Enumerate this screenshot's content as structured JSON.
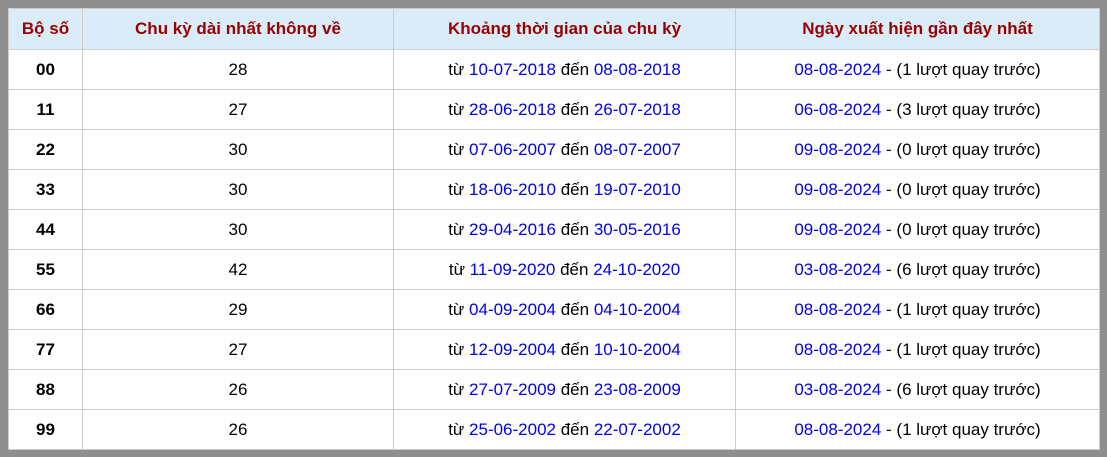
{
  "colors": {
    "frame_gray": "#8e8e8e",
    "cell_border": "#cccccc",
    "header_background": "#d9ecf7",
    "header_text": "#990000",
    "date_link_blue": "#0000ee",
    "body_text": "#000000"
  },
  "table": {
    "headers": [
      "Bộ số",
      "Chu kỳ dài nhất không về",
      "Khoảng thời gian của chu kỳ",
      "Ngày xuất hiện gần đây nhất"
    ],
    "period_labels": {
      "from": "từ ",
      "to": " đến "
    },
    "rows": [
      {
        "pair": "00",
        "cycle": "28",
        "from_date": "10-07-2018",
        "to_date": "08-08-2018",
        "recent_date": "08-08-2024",
        "recent_note": " - (1 lượt quay trước)"
      },
      {
        "pair": "11",
        "cycle": "27",
        "from_date": "28-06-2018",
        "to_date": "26-07-2018",
        "recent_date": "06-08-2024",
        "recent_note": " - (3 lượt quay trước)"
      },
      {
        "pair": "22",
        "cycle": "30",
        "from_date": "07-06-2007",
        "to_date": "08-07-2007",
        "recent_date": "09-08-2024",
        "recent_note": " - (0 lượt quay trước)"
      },
      {
        "pair": "33",
        "cycle": "30",
        "from_date": "18-06-2010",
        "to_date": "19-07-2010",
        "recent_date": "09-08-2024",
        "recent_note": " - (0 lượt quay trước)"
      },
      {
        "pair": "44",
        "cycle": "30",
        "from_date": "29-04-2016",
        "to_date": "30-05-2016",
        "recent_date": "09-08-2024",
        "recent_note": " - (0 lượt quay trước)"
      },
      {
        "pair": "55",
        "cycle": "42",
        "from_date": "11-09-2020",
        "to_date": "24-10-2020",
        "recent_date": "03-08-2024",
        "recent_note": " - (6 lượt quay trước)"
      },
      {
        "pair": "66",
        "cycle": "29",
        "from_date": "04-09-2004",
        "to_date": "04-10-2004",
        "recent_date": "08-08-2024",
        "recent_note": " - (1 lượt quay trước)"
      },
      {
        "pair": "77",
        "cycle": "27",
        "from_date": "12-09-2004",
        "to_date": "10-10-2004",
        "recent_date": "08-08-2024",
        "recent_note": " - (1 lượt quay trước)"
      },
      {
        "pair": "88",
        "cycle": "26",
        "from_date": "27-07-2009",
        "to_date": "23-08-2009",
        "recent_date": "03-08-2024",
        "recent_note": " - (6 lượt quay trước)"
      },
      {
        "pair": "99",
        "cycle": "26",
        "from_date": "25-06-2002",
        "to_date": "22-07-2002",
        "recent_date": "08-08-2024",
        "recent_note": " - (1 lượt quay trước)"
      }
    ]
  }
}
